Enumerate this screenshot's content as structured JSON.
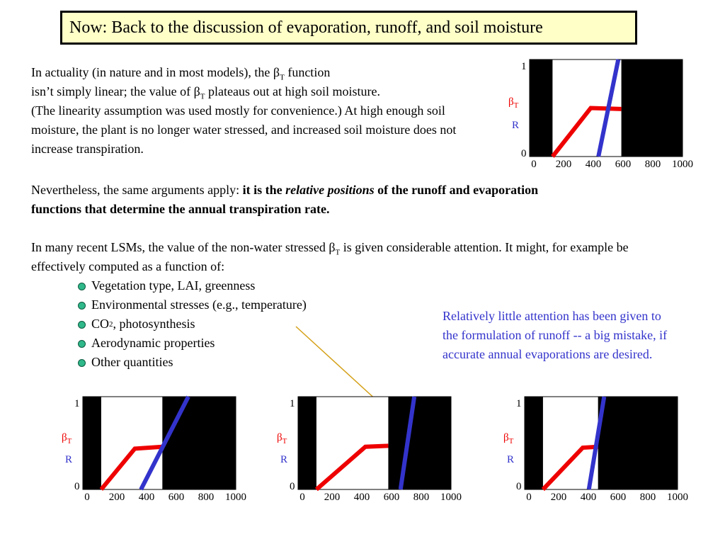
{
  "title": "Now: Back to the discussion of evaporation, runoff, and soil moisture",
  "paragraph1": {
    "line1_a": "In actuality (in nature and in most models), the ",
    "beta": "β",
    "sub": "T",
    "line1_b": " function",
    "line2_a": "isn’t simply linear; the value of ",
    "line2_b": " plateaus out at high soil moisture.",
    "rest": "(The linearity assumption was used mostly for convenience.)  At high enough soil moisture, the plant is no longer water stressed, and increased soil moisture does not increase transpiration."
  },
  "paragraph2": {
    "normal": "Nevertheless, the same arguments apply: ",
    "bold_a": "it is the ",
    "bold_italic": "relative positions",
    "bold_b": " of the runoff and evaporation functions that determine the annual transpiration rate."
  },
  "paragraph3": {
    "a": "In many recent LSMs, the value of the non-water stressed ",
    "b": " is given considerable attention.  It might, for example be effectively computed as a function of:"
  },
  "bullets": [
    "Vegetation type, LAI, greenness",
    "Environmental stresses (e.g., temperature)",
    "CO",
    "Aerodynamic properties",
    "Other quantities"
  ],
  "bullet3_sub": "2",
  "bullet3_rest": ", photosynthesis",
  "note": "Relatively little attention has been given to the formulation of runoff -- a big mistake, if accurate annual evaporations are desired.",
  "colors": {
    "title_bg": "#ffffc8",
    "beta_line": "#ee0000",
    "runoff_line": "#3333cc",
    "bullet": "#2fb88a",
    "note_text": "#3333cc",
    "arrow": "#d4a017"
  },
  "chart_data": [
    {
      "type": "line",
      "x_ticks": [
        "0",
        "200",
        "400",
        "600",
        "800",
        "1000"
      ],
      "y_ticks": [
        "0",
        "1"
      ],
      "legend": [
        "β",
        "R"
      ],
      "legend_sub": "T",
      "xlim": [
        0,
        1000
      ],
      "ylim": [
        0,
        1
      ],
      "shaded": [
        [
          0,
          150
        ],
        [
          600,
          1000
        ]
      ],
      "series": [
        {
          "x": [
            150,
            400,
            600
          ],
          "y": [
            0,
            0.5,
            0.49
          ]
        },
        {
          "x": [
            450,
            580
          ],
          "y": [
            0,
            1
          ]
        }
      ]
    },
    {
      "type": "line",
      "x_ticks": [
        "0",
        "200",
        "400",
        "600",
        "800",
        "1000"
      ],
      "y_ticks": [
        "0",
        "1"
      ],
      "legend": [
        "β",
        "R"
      ],
      "legend_sub": "T",
      "xlim": [
        0,
        1000
      ],
      "ylim": [
        0,
        1
      ],
      "shaded": [
        [
          0,
          120
        ],
        [
          520,
          1000
        ]
      ],
      "series": [
        {
          "x": [
            120,
            340,
            520
          ],
          "y": [
            0,
            0.44,
            0.46
          ]
        },
        {
          "x": [
            380,
            690
          ],
          "y": [
            0,
            1
          ]
        }
      ]
    },
    {
      "type": "line",
      "x_ticks": [
        "0",
        "200",
        "400",
        "600",
        "800",
        "1000"
      ],
      "y_ticks": [
        "0",
        "1"
      ],
      "legend": [
        "β",
        "R"
      ],
      "legend_sub": "T",
      "xlim": [
        0,
        1000
      ],
      "ylim": [
        0,
        1
      ],
      "shaded": [
        [
          0,
          120
        ],
        [
          590,
          1000
        ]
      ],
      "series": [
        {
          "x": [
            120,
            440,
            590
          ],
          "y": [
            0,
            0.46,
            0.47
          ]
        },
        {
          "x": [
            670,
            760
          ],
          "y": [
            0,
            1
          ]
        }
      ]
    },
    {
      "type": "line",
      "x_ticks": [
        "0",
        "200",
        "400",
        "600",
        "800",
        "1000"
      ],
      "y_ticks": [
        "0",
        "1"
      ],
      "legend": [
        "β",
        "R"
      ],
      "legend_sub": "T",
      "xlim": [
        0,
        1000
      ],
      "ylim": [
        0,
        1
      ],
      "shaded": [
        [
          0,
          120
        ],
        [
          480,
          1000
        ]
      ],
      "series": [
        {
          "x": [
            120,
            380,
            480
          ],
          "y": [
            0,
            0.45,
            0.46
          ]
        },
        {
          "x": [
            420,
            520
          ],
          "y": [
            0,
            1
          ]
        }
      ]
    }
  ]
}
